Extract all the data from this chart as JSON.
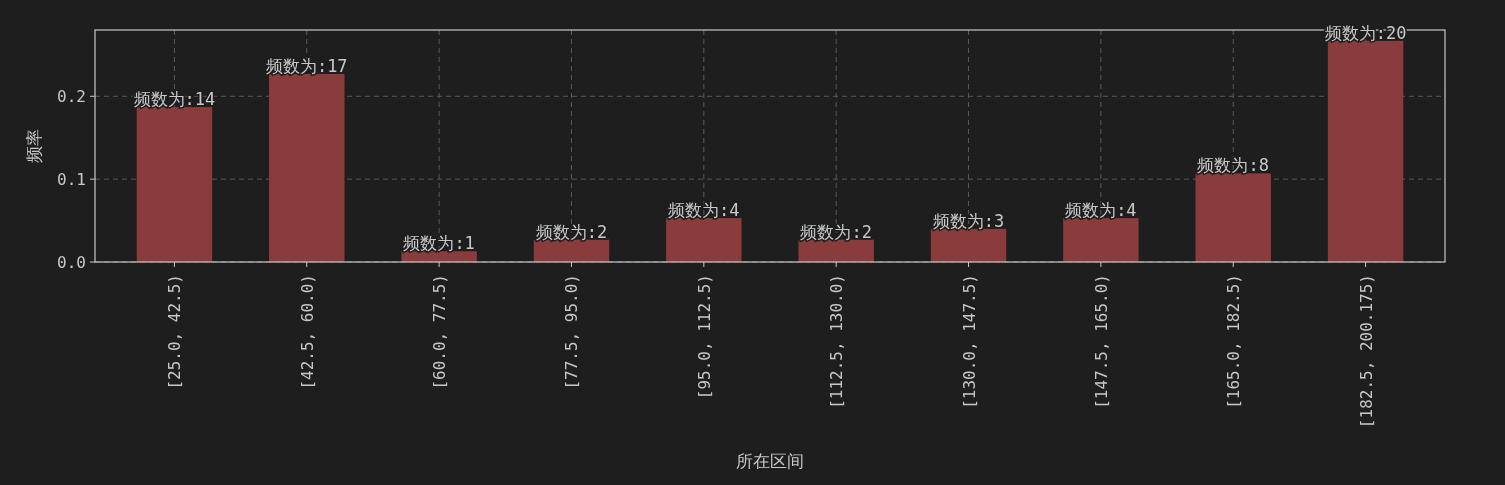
{
  "chart_data": {
    "type": "bar",
    "ylabel": "频率",
    "xlabel": "所在区间",
    "categories": [
      "[25.0, 42.5)",
      "[42.5, 60.0)",
      "[60.0, 77.5)",
      "[77.5, 95.0)",
      "[95.0, 112.5)",
      "[112.5, 130.0)",
      "[130.0, 147.5)",
      "[147.5, 165.0)",
      "[165.0, 182.5)",
      "[182.5, 200.175)"
    ],
    "values": [
      0.187,
      0.227,
      0.013,
      0.027,
      0.053,
      0.027,
      0.04,
      0.053,
      0.107,
      0.267
    ],
    "annotations": [
      {
        "text": "频数为:14",
        "x": "[25.0, 42.5)",
        "y": 0.187
      },
      {
        "text": "频数为:17",
        "x": "[42.5, 60.0)",
        "y": 0.227
      },
      {
        "text": "频数为:1",
        "x": "[60.0, 77.5)",
        "y": 0.013
      },
      {
        "text": "频数为:2",
        "x": "[77.5, 95.0)",
        "y": 0.027
      },
      {
        "text": "频数为:4",
        "x": "[95.0, 112.5)",
        "y": 0.053
      },
      {
        "text": "频数为:2",
        "x": "[112.5, 130.0)",
        "y": 0.027
      },
      {
        "text": "频数为:3",
        "x": "[130.0, 147.5)",
        "y": 0.04
      },
      {
        "text": "频数为:4",
        "x": "[147.5, 165.0)",
        "y": 0.053
      },
      {
        "text": "频数为:8",
        "x": "[165.0, 182.5)",
        "y": 0.107
      },
      {
        "text": "频数为:20",
        "x": "[182.5, 200.175)",
        "y": 0.267
      }
    ],
    "color": "#8a3b3b",
    "ylim": [
      0,
      0.28
    ],
    "yticks": [
      {
        "value": 0,
        "label": "0.0"
      },
      0.1,
      0.2
    ],
    "grid": true
  }
}
